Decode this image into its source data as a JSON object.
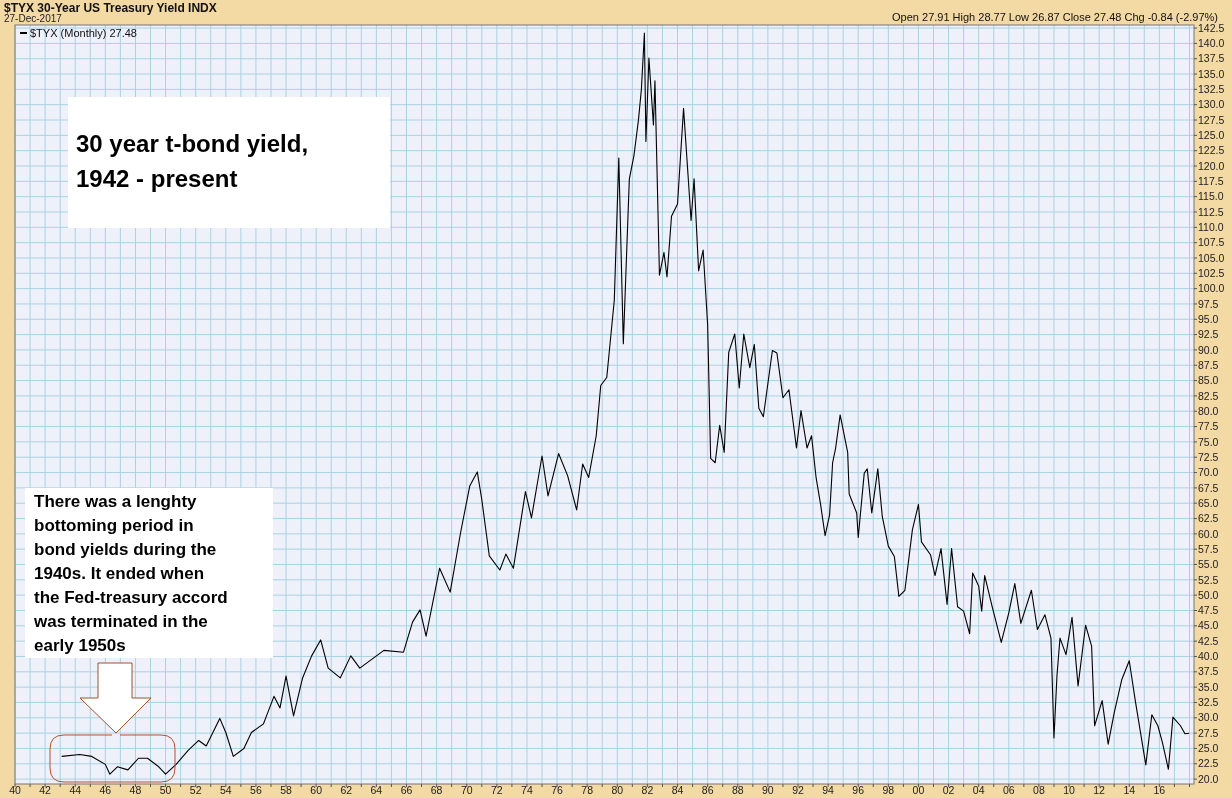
{
  "chart_data": {
    "type": "line",
    "title": "$TYX 30-Year US Treasury Yield INDX",
    "subtitle": "27-Dec-2017",
    "annotations": [
      "Open 27.91  High 28.77  Low 26.87  Close 27.48  Chg -0.84 (-2.97%)",
      "30 year t-bond yield, 1942 - present",
      "There was a lenghty bottoming period in bond yields during the 1940s. It ended when the Fed-treasury accord was terminated in the early 1950s"
    ],
    "x": [
      1943.1,
      1944.3,
      1945.1,
      1946.0,
      1946.3,
      1946.8,
      1947.5,
      1948.2,
      1948.8,
      1949.5,
      1950.0,
      1950.7,
      1951.5,
      1952.2,
      1952.7,
      1953.6,
      1954.0,
      1954.5,
      1955.2,
      1955.7,
      1956.5,
      1957.2,
      1957.6,
      1958.0,
      1958.5,
      1959.1,
      1959.7,
      1960.3,
      1960.8,
      1961.6,
      1962.3,
      1962.9,
      1964.5,
      1965.8,
      1966.4,
      1966.9,
      1967.3,
      1968.2,
      1968.9,
      1969.6,
      1970.2,
      1970.7,
      1971.0,
      1971.5,
      1972.2,
      1972.6,
      1973.1,
      1973.9,
      1974.3,
      1975.0,
      1975.4,
      1976.1,
      1976.7,
      1977.3,
      1977.7,
      1978.1,
      1978.6,
      1978.9,
      1979.3,
      1979.8,
      1980.1,
      1980.4,
      1980.8,
      1981.1,
      1981.4,
      1981.6,
      1981.8,
      1981.9,
      1982.1,
      1982.4,
      1982.5,
      1982.8,
      1983.1,
      1983.3,
      1983.6,
      1984.0,
      1984.4,
      1984.9,
      1985.1,
      1985.4,
      1985.7,
      1986.0,
      1986.2,
      1986.5,
      1986.8,
      1987.1,
      1987.4,
      1987.8,
      1988.1,
      1988.4,
      1988.8,
      1989.1,
      1989.4,
      1989.7,
      1990.3,
      1990.6,
      1991.0,
      1991.4,
      1991.9,
      1992.2,
      1992.6,
      1992.9,
      1993.2,
      1993.5,
      1993.8,
      1994.1,
      1994.3,
      1994.5,
      1994.8,
      1995.3,
      1995.4,
      1995.9,
      1996.0,
      1996.4,
      1996.6,
      1996.9,
      1997.3,
      1997.6,
      1998.0,
      1998.4,
      1998.7,
      1999.1,
      1999.6,
      2000.0,
      2000.2,
      2000.8,
      2001.1,
      2001.5,
      2001.9,
      2002.2,
      2002.6,
      2003.0,
      2003.4,
      2003.6,
      2004.0,
      2004.2,
      2004.4,
      2004.9,
      2005.5,
      2006.0,
      2006.4,
      2006.8,
      2007.5,
      2007.9,
      2008.4,
      2008.8,
      2009.0,
      2009.2,
      2009.4,
      2009.8,
      2010.2,
      2010.6,
      2011.1,
      2011.5,
      2011.7,
      2012.2,
      2012.6,
      2013.0,
      2013.5,
      2014.0,
      2014.4,
      2015.1,
      2015.5,
      2015.9,
      2016.2,
      2016.6,
      2016.9,
      2017.4,
      2017.7,
      2017.98
    ],
    "series": [
      {
        "name": "$TYX (Monthly) 27.48",
        "color": "#000000",
        "values": [
          23.7,
          24.0,
          23.7,
          22.4,
          20.8,
          22.0,
          21.5,
          23.4,
          23.4,
          22.1,
          20.8,
          22.4,
          24.7,
          26.3,
          25.4,
          29.9,
          27.6,
          23.7,
          25.0,
          27.6,
          29.0,
          33.5,
          31.6,
          36.8,
          30.3,
          36.5,
          40.1,
          42.7,
          38.1,
          36.5,
          40.1,
          38.1,
          41.0,
          40.7,
          45.6,
          47.6,
          43.3,
          54.4,
          50.5,
          60.3,
          67.8,
          70.1,
          65.6,
          56.4,
          54.1,
          56.7,
          54.4,
          66.9,
          62.6,
          72.7,
          66.2,
          73.1,
          69.5,
          63.9,
          71.4,
          69.2,
          76.0,
          84.2,
          85.5,
          98.1,
          121.3,
          91.0,
          117.9,
          121.6,
          127.4,
          132.5,
          141.7,
          124.0,
          137.6,
          126.7,
          133.9,
          102.2,
          105.9,
          101.9,
          111.8,
          113.8,
          129.4,
          111.1,
          117.9,
          102.9,
          106.3,
          94.1,
          72.3,
          71.6,
          77.7,
          73.3,
          89.6,
          92.6,
          83.8,
          92.6,
          87.1,
          90.9,
          80.5,
          79.1,
          89.9,
          89.5,
          82.2,
          83.5,
          74.0,
          80.1,
          74.0,
          76.0,
          69.2,
          64.8,
          59.7,
          63.1,
          71.6,
          74.0,
          79.4,
          73.3,
          66.5,
          63.4,
          59.4,
          69.9,
          70.6,
          63.4,
          70.6,
          62.8,
          58.0,
          56.3,
          49.8,
          50.8,
          60.7,
          64.8,
          58.7,
          56.6,
          53.2,
          57.6,
          48.5,
          57.6,
          48.1,
          47.4,
          43.7,
          53.6,
          51.5,
          47.4,
          53.2,
          48.1,
          42.3,
          47.1,
          51.9,
          45.4,
          50.8,
          44.4,
          46.8,
          43.0,
          26.7,
          36.9,
          43.0,
          40.3,
          46.4,
          35.2,
          45.1,
          41.7,
          28.7,
          32.8,
          25.7,
          30.8,
          36.2,
          39.3,
          32.8,
          22.3,
          30.5,
          28.7,
          26.0,
          21.6,
          30.1,
          28.7,
          27.4,
          27.48
        ]
      }
    ],
    "xlim": [
      1940,
      2018.3
    ],
    "xticks": [
      {
        "value": 1940,
        "label": "40"
      },
      {
        "value": 1941,
        "label": null
      },
      {
        "value": 1942,
        "label": "42"
      },
      {
        "value": 1943,
        "label": null
      },
      {
        "value": 1944,
        "label": "44"
      },
      {
        "value": 1945,
        "label": null
      },
      {
        "value": 1946,
        "label": "46"
      },
      {
        "value": 1947,
        "label": null
      },
      {
        "value": 1948,
        "label": "48"
      },
      {
        "value": 1949,
        "label": null
      },
      {
        "value": 1950,
        "label": "50"
      },
      {
        "value": 1951,
        "label": null
      },
      {
        "value": 1952,
        "label": "52"
      },
      {
        "value": 1953,
        "label": null
      },
      {
        "value": 1954,
        "label": "54"
      },
      {
        "value": 1955,
        "label": null
      },
      {
        "value": 1956,
        "label": "56"
      },
      {
        "value": 1957,
        "label": null
      },
      {
        "value": 1958,
        "label": "58"
      },
      {
        "value": 1959,
        "label": null
      },
      {
        "value": 1960,
        "label": "60"
      },
      {
        "value": 1961,
        "label": null
      },
      {
        "value": 1962,
        "label": "62"
      },
      {
        "value": 1963,
        "label": null
      },
      {
        "value": 1964,
        "label": "64"
      },
      {
        "value": 1965,
        "label": null
      },
      {
        "value": 1966,
        "label": "66"
      },
      {
        "value": 1967,
        "label": null
      },
      {
        "value": 1968,
        "label": "68"
      },
      {
        "value": 1969,
        "label": null
      },
      {
        "value": 1970,
        "label": "70"
      },
      {
        "value": 1971,
        "label": null
      },
      {
        "value": 1972,
        "label": "72"
      },
      {
        "value": 1973,
        "label": null
      },
      {
        "value": 1974,
        "label": "74"
      },
      {
        "value": 1975,
        "label": null
      },
      {
        "value": 1976,
        "label": "76"
      },
      {
        "value": 1977,
        "label": null
      },
      {
        "value": 1978,
        "label": "78"
      },
      {
        "value": 1979,
        "label": null
      },
      {
        "value": 1980,
        "label": "80"
      },
      {
        "value": 1981,
        "label": null
      },
      {
        "value": 1982,
        "label": "82"
      },
      {
        "value": 1983,
        "label": null
      },
      {
        "value": 1984,
        "label": "84"
      },
      {
        "value": 1985,
        "label": null
      },
      {
        "value": 1986,
        "label": "86"
      },
      {
        "value": 1987,
        "label": null
      },
      {
        "value": 1988,
        "label": "88"
      },
      {
        "value": 1989,
        "label": null
      },
      {
        "value": 1990,
        "label": "90"
      },
      {
        "value": 1991,
        "label": null
      },
      {
        "value": 1992,
        "label": "92"
      },
      {
        "value": 1993,
        "label": null
      },
      {
        "value": 1994,
        "label": "94"
      },
      {
        "value": 1995,
        "label": null
      },
      {
        "value": 1996,
        "label": "96"
      },
      {
        "value": 1997,
        "label": null
      },
      {
        "value": 1998,
        "label": "98"
      },
      {
        "value": 1999,
        "label": null
      },
      {
        "value": 2000,
        "label": "00"
      },
      {
        "value": 2001,
        "label": null
      },
      {
        "value": 2002,
        "label": "02"
      },
      {
        "value": 2003,
        "label": null
      },
      {
        "value": 2004,
        "label": "04"
      },
      {
        "value": 2005,
        "label": null
      },
      {
        "value": 2006,
        "label": "06"
      },
      {
        "value": 2007,
        "label": null
      },
      {
        "value": 2008,
        "label": "08"
      },
      {
        "value": 2009,
        "label": null
      },
      {
        "value": 2010,
        "label": "10"
      },
      {
        "value": 2011,
        "label": null
      },
      {
        "value": 2012,
        "label": "12"
      },
      {
        "value": 2013,
        "label": null
      },
      {
        "value": 2014,
        "label": "14"
      },
      {
        "value": 2015,
        "label": null
      },
      {
        "value": 2016,
        "label": "16"
      },
      {
        "value": 2017,
        "label": null
      },
      {
        "value": 2018,
        "label": null
      }
    ],
    "ylim": [
      19.2,
      143.0
    ],
    "yticks": [
      {
        "value": 20,
        "label": "20.0"
      },
      {
        "value": 22.5,
        "label": "22.5"
      },
      {
        "value": 25,
        "label": "25.0"
      },
      {
        "value": 27.5,
        "label": "27.5"
      },
      {
        "value": 30,
        "label": "30.0"
      },
      {
        "value": 32.5,
        "label": "32.5"
      },
      {
        "value": 35,
        "label": "35.0"
      },
      {
        "value": 37.5,
        "label": "37.5"
      },
      {
        "value": 40,
        "label": "40.0"
      },
      {
        "value": 42.5,
        "label": "42.5"
      },
      {
        "value": 45,
        "label": "45.0"
      },
      {
        "value": 47.5,
        "label": "47.5"
      },
      {
        "value": 50,
        "label": "50.0"
      },
      {
        "value": 52.5,
        "label": "52.5"
      },
      {
        "value": 55,
        "label": "55.0"
      },
      {
        "value": 57.5,
        "label": "57.5"
      },
      {
        "value": 60,
        "label": "60.0"
      },
      {
        "value": 62.5,
        "label": "62.5"
      },
      {
        "value": 65,
        "label": "65.0"
      },
      {
        "value": 67.5,
        "label": "67.5"
      },
      {
        "value": 70,
        "label": "70.0"
      },
      {
        "value": 72.5,
        "label": "72.5"
      },
      {
        "value": 75,
        "label": "75.0"
      },
      {
        "value": 77.5,
        "label": "77.5"
      },
      {
        "value": 80,
        "label": "80.0"
      },
      {
        "value": 82.5,
        "label": "82.5"
      },
      {
        "value": 85,
        "label": "85.0"
      },
      {
        "value": 87.5,
        "label": "87.5"
      },
      {
        "value": 90,
        "label": "90.0"
      },
      {
        "value": 92.5,
        "label": "92.5"
      },
      {
        "value": 95,
        "label": "95.0"
      },
      {
        "value": 97.5,
        "label": "97.5"
      },
      {
        "value": 100,
        "label": "100.0"
      },
      {
        "value": 102.5,
        "label": "102.5"
      },
      {
        "value": 105,
        "label": "105.0"
      },
      {
        "value": 107.5,
        "label": "107.5"
      },
      {
        "value": 110,
        "label": "110.0"
      },
      {
        "value": 112.5,
        "label": "112.5"
      },
      {
        "value": 115,
        "label": "115.0"
      },
      {
        "value": 117.5,
        "label": "117.5"
      },
      {
        "value": 120,
        "label": "120.0"
      },
      {
        "value": 122.5,
        "label": "122.5"
      },
      {
        "value": 125,
        "label": "125.0"
      },
      {
        "value": 127.5,
        "label": "127.5"
      },
      {
        "value": 130,
        "label": "130.0"
      },
      {
        "value": 132.5,
        "label": "132.5"
      },
      {
        "value": 135,
        "label": "135.0"
      },
      {
        "value": 137.5,
        "label": "137.5"
      },
      {
        "value": 140,
        "label": "140.0"
      },
      {
        "value": 142.5,
        "label": "142.5"
      }
    ],
    "grid": true,
    "legend": "top left",
    "marker": "none",
    "line_style": "solid"
  }
}
